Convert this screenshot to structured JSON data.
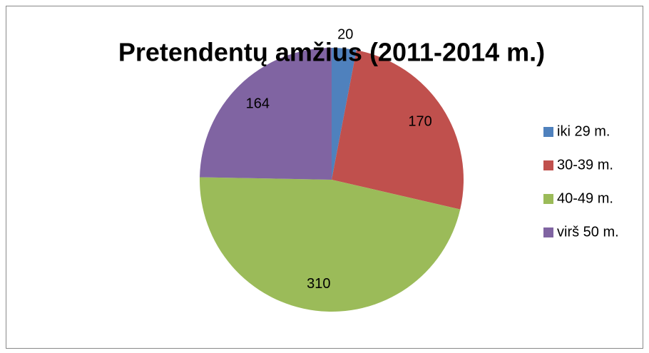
{
  "chart_data": {
    "type": "pie",
    "title": "Pretendentų amžius (2011-2014 m.)",
    "categories": [
      "iki 29 m.",
      "30-39 m.",
      "40-49 m.",
      "virš 50 m."
    ],
    "values": [
      20,
      170,
      310,
      164
    ],
    "colors": [
      "#4f81bd",
      "#c0504d",
      "#9bbb59",
      "#8064a2"
    ],
    "legend": "right"
  }
}
